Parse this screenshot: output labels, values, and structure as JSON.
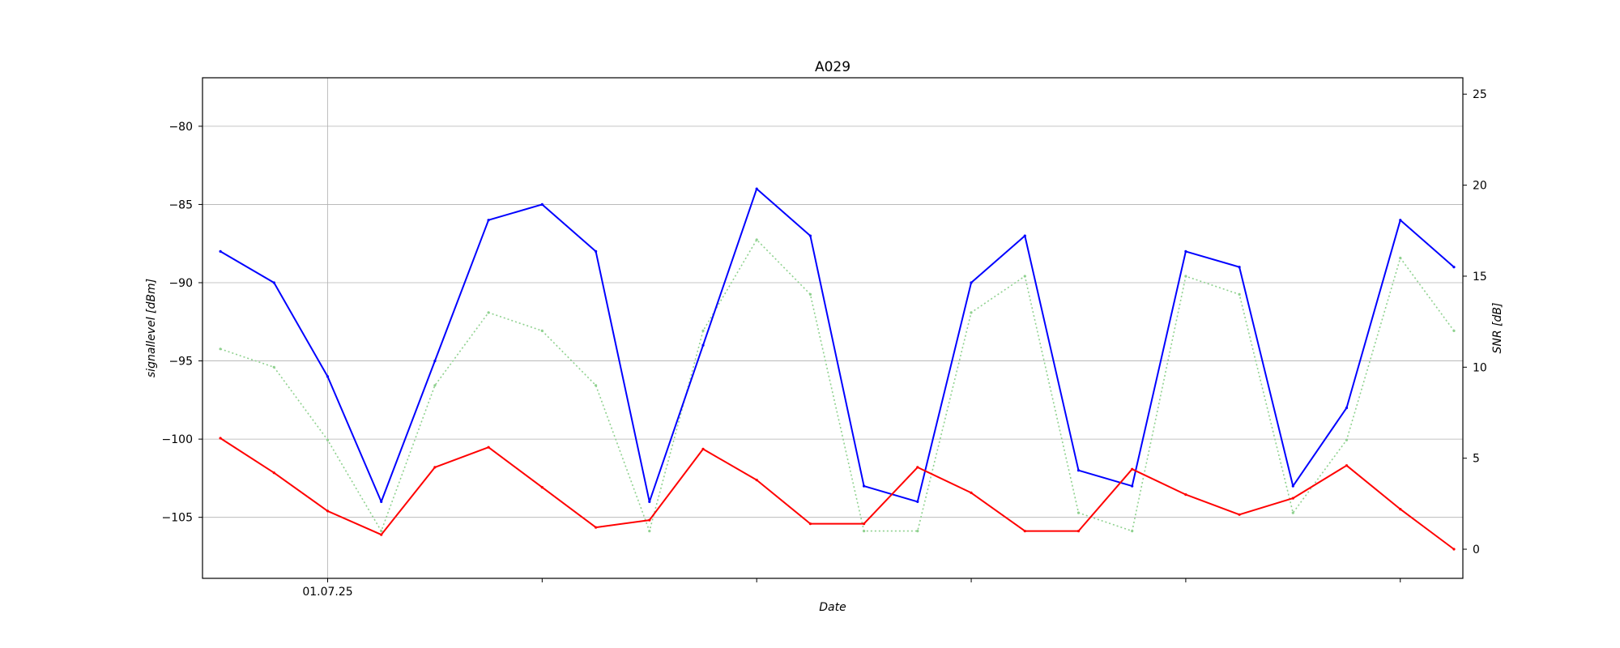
{
  "chart_data": {
    "type": "line",
    "title": "A029",
    "xlabel": "Date",
    "ylabel": "signallevel [dBm]",
    "y2label": "SNR [dB]",
    "x_tick_labels": [
      "01.07.25"
    ],
    "x_range": [
      "2025-06-30 10:00",
      "2025-07-06 07:00"
    ],
    "ylim": [
      -108.9,
      -76.9
    ],
    "y2lim": [
      -1.6,
      25.9
    ],
    "y_ticks": [
      -80,
      -85,
      -90,
      -95,
      -100,
      -105
    ],
    "y2_ticks": [
      25,
      20,
      15,
      10,
      5,
      0
    ],
    "grid": true,
    "legend": "none",
    "series": [
      {
        "axis": "left",
        "color": "#0000ff",
        "style": "solid",
        "x": [
          "2025-06-30 12:00",
          "2025-06-30 18:00",
          "2025-07-01 00:00",
          "2025-07-01 06:00",
          "2025-07-01 12:00",
          "2025-07-01 18:00",
          "2025-07-02 00:00",
          "2025-07-02 06:00",
          "2025-07-02 12:00",
          "2025-07-02 18:00",
          "2025-07-03 00:00",
          "2025-07-03 06:00",
          "2025-07-03 12:00",
          "2025-07-03 18:00",
          "2025-07-04 00:00",
          "2025-07-04 06:00",
          "2025-07-04 12:00",
          "2025-07-04 18:00",
          "2025-07-05 00:00",
          "2025-07-05 06:00",
          "2025-07-05 12:00",
          "2025-07-05 18:00",
          "2025-07-06 00:00",
          "2025-07-06 06:00"
        ],
        "values": [
          -88,
          -90,
          -96,
          -104,
          -95,
          -86,
          -85,
          -88,
          -104,
          -94,
          -84,
          -87,
          -103,
          -104,
          -90,
          -87,
          -102,
          -103,
          -88,
          -89,
          -103,
          -98,
          -86,
          -89
        ]
      },
      {
        "axis": "right",
        "color": "#ff0000",
        "style": "solid",
        "x": [
          "2025-06-30 12:00",
          "2025-06-30 18:00",
          "2025-07-01 00:00",
          "2025-07-01 06:00",
          "2025-07-01 12:00",
          "2025-07-01 18:00",
          "2025-07-02 00:00",
          "2025-07-02 06:00",
          "2025-07-02 12:00",
          "2025-07-02 18:00",
          "2025-07-03 00:00",
          "2025-07-03 06:00",
          "2025-07-03 12:00",
          "2025-07-03 18:00",
          "2025-07-04 00:00",
          "2025-07-04 06:00",
          "2025-07-04 12:00",
          "2025-07-04 18:00",
          "2025-07-05 00:00",
          "2025-07-05 06:00",
          "2025-07-05 12:00",
          "2025-07-05 18:00",
          "2025-07-06 00:00",
          "2025-07-06 06:00"
        ],
        "values": [
          6.1,
          4.2,
          2.1,
          0.8,
          4.5,
          5.6,
          3.4,
          1.2,
          1.6,
          5.5,
          3.8,
          1.4,
          1.4,
          4.5,
          3.1,
          1.0,
          1.0,
          4.4,
          3.0,
          1.9,
          2.8,
          4.6,
          2.2,
          0.0
        ]
      },
      {
        "axis": "right",
        "color": "#8fd18f",
        "style": "dotted",
        "x": [
          "2025-06-30 12:00",
          "2025-06-30 18:00",
          "2025-07-01 00:00",
          "2025-07-01 06:00",
          "2025-07-01 12:00",
          "2025-07-01 18:00",
          "2025-07-02 00:00",
          "2025-07-02 06:00",
          "2025-07-02 12:00",
          "2025-07-02 18:00",
          "2025-07-03 00:00",
          "2025-07-03 06:00",
          "2025-07-03 12:00",
          "2025-07-03 18:00",
          "2025-07-04 00:00",
          "2025-07-04 06:00",
          "2025-07-04 12:00",
          "2025-07-04 18:00",
          "2025-07-05 00:00",
          "2025-07-05 06:00",
          "2025-07-05 12:00",
          "2025-07-05 18:00",
          "2025-07-06 00:00",
          "2025-07-06 06:00"
        ],
        "values": [
          11,
          10,
          6,
          1,
          9,
          13,
          12,
          9,
          1,
          12,
          17,
          14,
          1,
          1,
          13,
          15,
          2,
          1,
          15,
          14,
          2,
          6,
          16,
          12
        ]
      }
    ]
  }
}
